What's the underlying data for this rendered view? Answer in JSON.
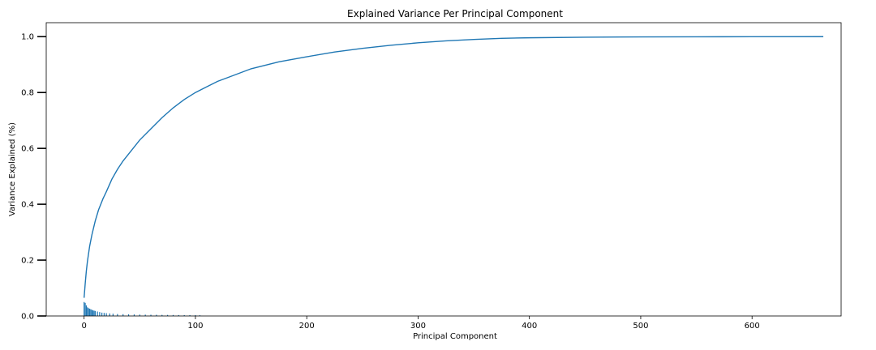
{
  "chart_data": {
    "type": "bar+line",
    "title": "Explained Variance Per Principal Component",
    "xlabel": "Principal Component",
    "ylabel": "Variance Explained (%)",
    "xlim": [
      -34,
      680
    ],
    "ylim": [
      0,
      1.05
    ],
    "xticks": [
      0,
      100,
      200,
      300,
      400,
      500,
      600
    ],
    "yticks": [
      0.0,
      0.2,
      0.4,
      0.6,
      0.8,
      1.0
    ],
    "grid": false,
    "legend": "none",
    "n_components": 665,
    "bar_color": "#1f77b4",
    "line_color": "#1f77b4",
    "cumulative_line": {
      "x": [
        0,
        1,
        2,
        3,
        5,
        7,
        10,
        13,
        17,
        20,
        25,
        30,
        35,
        40,
        50,
        60,
        70,
        80,
        90,
        100,
        110,
        120,
        130,
        150,
        175,
        200,
        225,
        250,
        275,
        300,
        325,
        350,
        375,
        400,
        450,
        500,
        550,
        600,
        664
      ],
      "y": [
        0.065,
        0.115,
        0.16,
        0.195,
        0.25,
        0.29,
        0.34,
        0.38,
        0.42,
        0.445,
        0.49,
        0.525,
        0.555,
        0.58,
        0.63,
        0.67,
        0.71,
        0.745,
        0.775,
        0.8,
        0.82,
        0.84,
        0.855,
        0.885,
        0.91,
        0.928,
        0.945,
        0.958,
        0.969,
        0.978,
        0.985,
        0.99,
        0.994,
        0.996,
        0.998,
        0.999,
        0.9995,
        0.9998,
        1.0
      ]
    },
    "bars": {
      "x": [
        0,
        1,
        2,
        3,
        4,
        5,
        6,
        7,
        8,
        9,
        10,
        12,
        14,
        16,
        18,
        20,
        23,
        26,
        30,
        35,
        40,
        45,
        50,
        55,
        60,
        65,
        70,
        75,
        80,
        85,
        90,
        95,
        100,
        104
      ],
      "values": [
        0.05,
        0.047,
        0.038,
        0.031,
        0.028,
        0.026,
        0.024,
        0.022,
        0.02,
        0.019,
        0.018,
        0.016,
        0.014,
        0.012,
        0.011,
        0.01,
        0.009,
        0.008,
        0.007,
        0.0065,
        0.006,
        0.0055,
        0.005,
        0.0048,
        0.0045,
        0.0043,
        0.004,
        0.0038,
        0.0036,
        0.0034,
        0.0032,
        0.003,
        0.0028,
        0.0026
      ]
    }
  }
}
